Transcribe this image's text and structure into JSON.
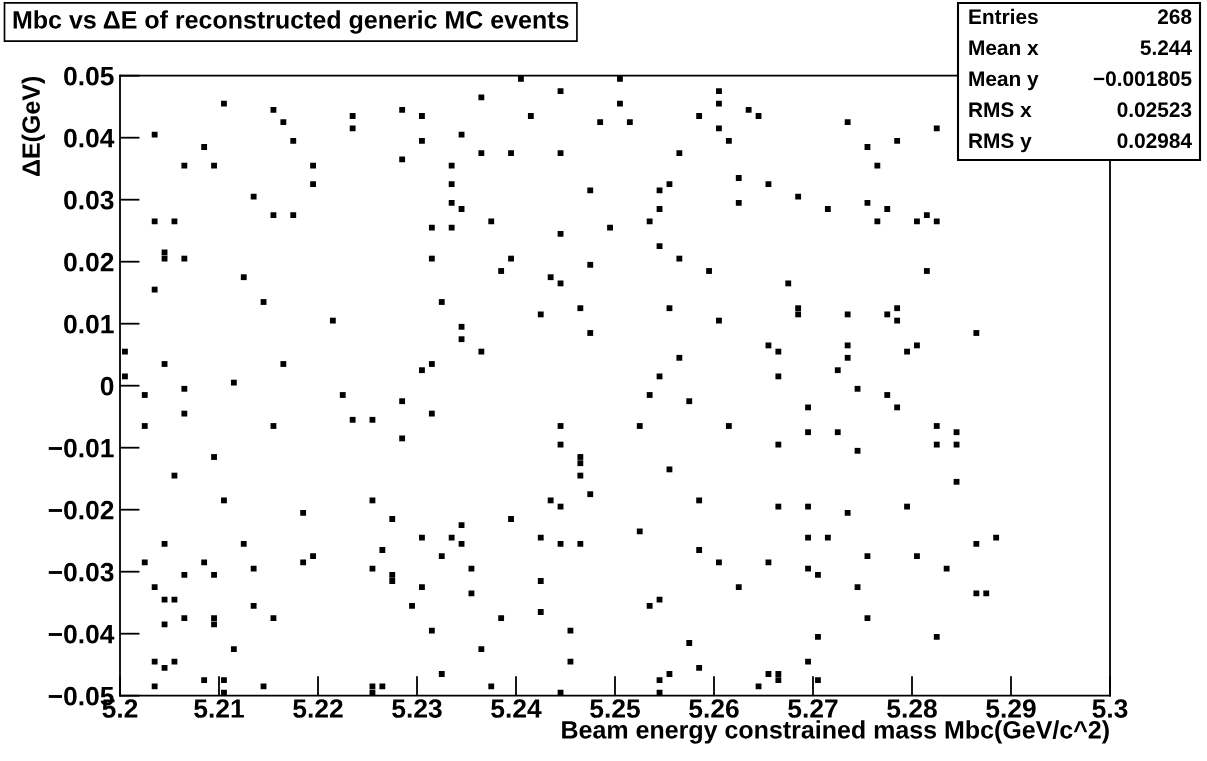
{
  "chart_data": {
    "type": "scatter",
    "title": "Mbc vs ΔE of reconstructed generic MC events",
    "xlabel": "Beam energy constrained mass Mbc(GeV/c^2)",
    "ylabel": "ΔE(GeV)",
    "marker": "square",
    "xlim": [
      5.2,
      5.3
    ],
    "ylim": [
      -0.05,
      0.05
    ],
    "xticks": [
      5.2,
      5.21,
      5.22,
      5.23,
      5.24,
      5.25,
      5.26,
      5.27,
      5.28,
      5.29,
      5.3
    ],
    "yticks": [
      {
        "value": -0.05,
        "label": "−0.05"
      },
      {
        "value": -0.04,
        "label": "−0.04"
      },
      {
        "value": -0.03,
        "label": "−0.03"
      },
      {
        "value": -0.02,
        "label": "−0.02"
      },
      {
        "value": -0.01,
        "label": "−0.01"
      },
      0,
      0.01,
      0.02,
      0.03,
      0.04,
      0.05
    ],
    "annotations": [
      "Entries",
      "268",
      "Mean x",
      "5.244",
      "Mean y",
      "−0.001805",
      "RMS x",
      "0.02523",
      "RMS y",
      "0.02984"
    ],
    "x": [
      5.2035,
      5.2105,
      5.2155,
      5.2165,
      5.2235,
      5.2235,
      5.2285,
      5.2305,
      5.2085,
      5.2175,
      5.2305,
      5.2285,
      5.2065,
      5.2095,
      5.2195,
      5.2195,
      5.2335,
      5.2335,
      5.2135,
      5.2335,
      5.2155,
      5.2175,
      5.2035,
      5.2055,
      5.2315,
      5.2335,
      5.2045,
      5.2045,
      5.2065,
      5.2315,
      5.2125,
      5.2035,
      5.2325,
      5.2145,
      5.2215,
      5.2005,
      5.2045,
      5.2165,
      5.2315,
      5.2305,
      5.2005,
      5.2115,
      5.2405,
      5.2505,
      5.2445,
      5.2365,
      5.2605,
      5.2505,
      5.2605,
      5.2635,
      5.2645,
      5.2415,
      5.2485,
      5.2515,
      5.2585,
      5.2605,
      5.2615,
      5.2345,
      5.2365,
      5.2395,
      5.2445,
      5.2565,
      5.2625,
      5.2555,
      5.2655,
      5.2475,
      5.2545,
      5.2625,
      5.2545,
      5.2345,
      5.2375,
      5.2495,
      5.2535,
      5.2445,
      5.2545,
      5.2395,
      5.2565,
      5.2385,
      5.2475,
      5.2435,
      5.2445,
      5.2595,
      5.2675,
      5.2465,
      5.2425,
      5.2555,
      5.2605,
      5.2345,
      5.2345,
      5.2475,
      5.2365,
      5.2655,
      5.2665,
      5.2565,
      5.2545,
      5.2665,
      5.2735,
      5.2825,
      5.2755,
      5.2785,
      5.2765,
      5.2685,
      5.2715,
      5.2755,
      5.2775,
      5.2765,
      5.2805,
      5.2815,
      5.2825,
      5.2815,
      5.2685,
      5.2685,
      5.2735,
      5.2775,
      5.2785,
      5.2785,
      5.2865,
      5.2735,
      5.2735,
      5.2795,
      5.2805,
      5.2725,
      5.2025,
      5.2065,
      5.2225,
      5.2285,
      5.2065,
      5.2315,
      5.2025,
      5.2155,
      5.2235,
      5.2255,
      5.2285,
      5.2095,
      5.2055,
      5.2255,
      5.2105,
      5.2185,
      5.2275,
      5.2305,
      5.2335,
      5.2045,
      5.2125,
      5.2265,
      5.2195,
      5.2185,
      5.2085,
      5.2025,
      5.2325,
      5.2255,
      5.2135,
      5.2065,
      5.2095,
      5.2275,
      5.2275,
      5.2305,
      5.2035,
      5.2045,
      5.2055,
      5.2295,
      5.2135,
      5.2065,
      5.2095,
      5.2155,
      5.2045,
      5.2095,
      5.2315,
      5.2115,
      5.2035,
      5.2045,
      5.2055,
      5.2325,
      5.2035,
      5.2085,
      5.2105,
      5.2105,
      5.2145,
      5.2255,
      5.2255,
      5.2265,
      5.2535,
      5.2575,
      5.2445,
      5.2525,
      5.2615,
      5.2665,
      5.2445,
      5.2465,
      5.2465,
      5.2555,
      5.2465,
      5.2475,
      5.2435,
      5.2445,
      5.2585,
      5.2665,
      5.2395,
      5.2525,
      5.2345,
      5.2425,
      5.2345,
      5.2445,
      5.2465,
      5.2585,
      5.2605,
      5.2655,
      5.2355,
      5.2425,
      5.2625,
      5.2355,
      5.2545,
      5.2535,
      5.2425,
      5.2385,
      5.2455,
      5.2575,
      5.2365,
      5.2455,
      5.2585,
      5.2555,
      5.2545,
      5.2545,
      5.2375,
      5.2445,
      5.2655,
      5.2665,
      5.2665,
      5.2645,
      5.2745,
      5.2775,
      5.2785,
      5.2695,
      5.2695,
      5.2725,
      5.2825,
      5.2845,
      5.2825,
      5.2845,
      5.2745,
      5.2845,
      5.2695,
      5.2735,
      5.2795,
      5.2695,
      5.2715,
      5.2755,
      5.2805,
      5.2865,
      5.2885,
      5.2695,
      5.2705,
      5.2835,
      5.2745,
      5.2865,
      5.2875,
      5.2755,
      5.2705,
      5.2825,
      5.2695,
      5.2705
    ],
    "series": [
      {
        "color": "#000000",
        "values": [
          0.0405,
          0.0455,
          0.0445,
          0.0425,
          0.0435,
          0.0415,
          0.0445,
          0.0435,
          0.0385,
          0.0395,
          0.0395,
          0.0365,
          0.0355,
          0.0355,
          0.0355,
          0.0325,
          0.0355,
          0.0325,
          0.0305,
          0.0295,
          0.0275,
          0.0275,
          0.0265,
          0.0265,
          0.0255,
          0.0255,
          0.0215,
          0.0205,
          0.0205,
          0.0205,
          0.0175,
          0.0155,
          0.0135,
          0.0135,
          0.0105,
          0.0055,
          0.0035,
          0.0035,
          0.0035,
          0.0025,
          0.0015,
          0.0005,
          0.0495,
          0.0495,
          0.0475,
          0.0465,
          0.0475,
          0.0455,
          0.0455,
          0.0445,
          0.0435,
          0.0435,
          0.0425,
          0.0425,
          0.0435,
          0.0415,
          0.0395,
          0.0405,
          0.0375,
          0.0375,
          0.0375,
          0.0375,
          0.0335,
          0.0325,
          0.0325,
          0.0315,
          0.0315,
          0.0295,
          0.0285,
          0.0285,
          0.0265,
          0.0255,
          0.0265,
          0.0245,
          0.0225,
          0.0205,
          0.0205,
          0.0185,
          0.0195,
          0.0175,
          0.0165,
          0.0185,
          0.0165,
          0.0125,
          0.0115,
          0.0125,
          0.0105,
          0.0095,
          0.0075,
          0.0085,
          0.0055,
          0.0065,
          0.0055,
          0.0045,
          0.0015,
          0.0015,
          0.0425,
          0.0415,
          0.0385,
          0.0395,
          0.0355,
          0.0305,
          0.0285,
          0.0295,
          0.0285,
          0.0265,
          0.0265,
          0.0275,
          0.0265,
          0.0185,
          0.0125,
          0.0115,
          0.0115,
          0.0115,
          0.0125,
          0.0105,
          0.0085,
          0.0065,
          0.0045,
          0.0055,
          0.0065,
          0.0025,
          -0.0015,
          -0.0005,
          -0.0015,
          -0.0025,
          -0.0045,
          -0.0045,
          -0.0065,
          -0.0065,
          -0.0055,
          -0.0055,
          -0.0085,
          -0.0115,
          -0.0145,
          -0.0185,
          -0.0185,
          -0.0205,
          -0.0215,
          -0.0245,
          -0.0245,
          -0.0255,
          -0.0255,
          -0.0265,
          -0.0275,
          -0.0285,
          -0.0285,
          -0.0285,
          -0.0275,
          -0.0295,
          -0.0295,
          -0.0305,
          -0.0305,
          -0.0305,
          -0.0315,
          -0.0325,
          -0.0325,
          -0.0345,
          -0.0345,
          -0.0355,
          -0.0355,
          -0.0375,
          -0.0375,
          -0.0375,
          -0.0385,
          -0.0385,
          -0.0395,
          -0.0425,
          -0.0445,
          -0.0455,
          -0.0445,
          -0.0465,
          -0.0485,
          -0.0475,
          -0.0475,
          -0.0495,
          -0.0485,
          -0.0485,
          -0.0495,
          -0.0485,
          -0.0015,
          -0.0025,
          -0.0065,
          -0.0065,
          -0.0065,
          -0.0095,
          -0.0095,
          -0.0115,
          -0.0125,
          -0.0135,
          -0.0145,
          -0.0175,
          -0.0185,
          -0.0195,
          -0.0185,
          -0.0195,
          -0.0215,
          -0.0235,
          -0.0225,
          -0.0245,
          -0.0255,
          -0.0255,
          -0.0255,
          -0.0265,
          -0.0285,
          -0.0285,
          -0.0295,
          -0.0315,
          -0.0325,
          -0.0335,
          -0.0345,
          -0.0355,
          -0.0365,
          -0.0375,
          -0.0395,
          -0.0415,
          -0.0425,
          -0.0445,
          -0.0455,
          -0.0465,
          -0.0475,
          -0.0495,
          -0.0485,
          -0.0495,
          -0.0465,
          -0.0465,
          -0.0475,
          -0.0485,
          -0.0005,
          -0.0015,
          -0.0035,
          -0.0035,
          -0.0075,
          -0.0075,
          -0.0065,
          -0.0075,
          -0.0095,
          -0.0095,
          -0.0105,
          -0.0155,
          -0.0195,
          -0.0205,
          -0.0195,
          -0.0245,
          -0.0245,
          -0.0275,
          -0.0275,
          -0.0255,
          -0.0245,
          -0.0295,
          -0.0305,
          -0.0295,
          -0.0325,
          -0.0335,
          -0.0335,
          -0.0375,
          -0.0405,
          -0.0405,
          -0.0445,
          -0.0475
        ]
      }
    ]
  }
}
